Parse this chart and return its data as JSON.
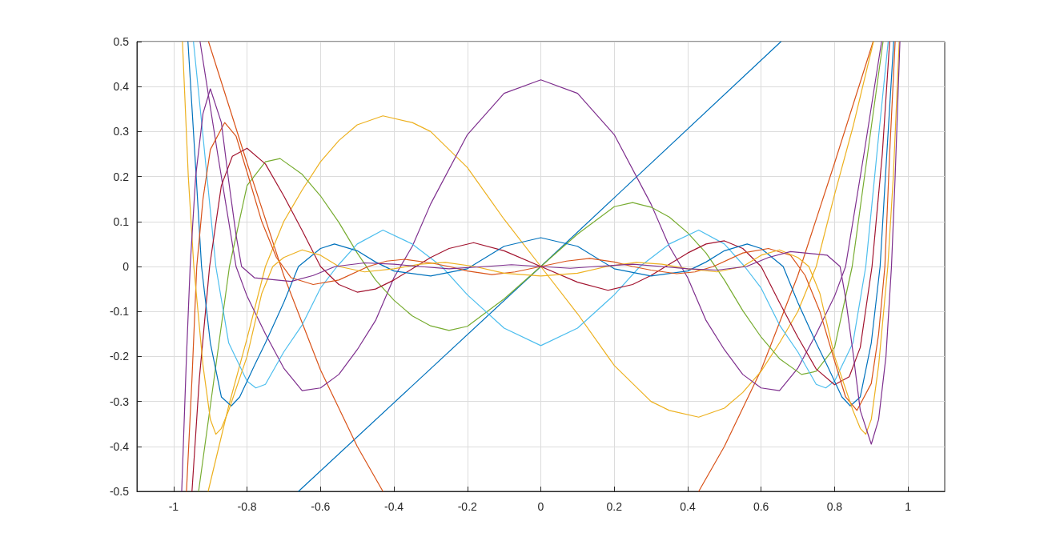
{
  "chart_data": {
    "type": "line",
    "xlim": [
      -1.1,
      1.1
    ],
    "xticks": [
      -1,
      -0.8,
      -0.6,
      -0.4,
      -0.2,
      0,
      0.2,
      0.4,
      0.6,
      0.8,
      1
    ],
    "ylim": [
      -0.5,
      0.5
    ],
    "yticks": [
      -0.5,
      -0.4,
      -0.3,
      -0.2,
      -0.1,
      0,
      0.1,
      0.2,
      0.3,
      0.4,
      0.5
    ],
    "grid": true,
    "marker": "none",
    "line_style": "solid",
    "series": [
      {
        "color": "#0072bd",
        "x": [
          -0.66,
          0,
          0.654
        ],
        "values": [
          -0.5,
          0,
          0.5
        ]
      },
      {
        "color": "#d95319",
        "x": [
          -0.905,
          -0.8,
          -0.7,
          -0.6,
          -0.5,
          -0.43,
          0,
          0.43,
          0.5,
          0.6,
          0.7,
          0.8,
          0.905
        ],
        "values": [
          0.5,
          0.23,
          -0.02,
          -0.23,
          -0.4,
          -0.5,
          null,
          -0.5,
          -0.4,
          -0.23,
          -0.02,
          0.23,
          0.5
        ]
      },
      {
        "color": "#edb120",
        "x": [
          -0.906,
          -0.85,
          -0.8,
          -0.75,
          -0.7,
          -0.65,
          -0.6,
          -0.55,
          -0.5,
          -0.43,
          -0.35,
          -0.3,
          -0.2,
          -0.1,
          0,
          0.1,
          0.2,
          0.3,
          0.35,
          0.43,
          0.5,
          0.55,
          0.6,
          0.65,
          0.7,
          0.75,
          0.8,
          0.85,
          0.906
        ],
        "values": [
          -0.5,
          -0.31,
          -0.16,
          0,
          0.1,
          0.17,
          0.233,
          0.28,
          0.315,
          0.335,
          0.32,
          0.3,
          0.22,
          0.105,
          0,
          -0.105,
          -0.22,
          -0.3,
          -0.32,
          -0.335,
          -0.315,
          -0.28,
          -0.233,
          -0.17,
          -0.1,
          0,
          0.16,
          0.31,
          0.5
        ]
      },
      {
        "color": "#7e2f8e",
        "x": [
          -0.928,
          -0.88,
          -0.83,
          -0.8,
          -0.75,
          -0.7,
          -0.65,
          -0.6,
          -0.55,
          -0.5,
          -0.45,
          -0.4,
          -0.35,
          -0.3,
          -0.2,
          -0.1,
          0,
          0.1,
          0.2,
          0.3,
          0.35,
          0.4,
          0.45,
          0.5,
          0.55,
          0.6,
          0.65,
          0.7,
          0.75,
          0.8,
          0.83,
          0.88,
          0.928
        ],
        "values": [
          0.5,
          0.25,
          0,
          -0.066,
          -0.15,
          -0.226,
          -0.276,
          -0.27,
          -0.24,
          -0.185,
          -0.12,
          -0.025,
          0.045,
          0.139,
          0.293,
          0.385,
          0.415,
          0.385,
          0.293,
          0.139,
          0.045,
          -0.025,
          -0.12,
          -0.185,
          -0.24,
          -0.27,
          -0.276,
          -0.226,
          -0.15,
          -0.066,
          0,
          0.25,
          0.5
        ]
      },
      {
        "color": "#77ac30",
        "x": [
          -0.932,
          -0.9,
          -0.848,
          -0.8,
          -0.75,
          -0.71,
          -0.65,
          -0.6,
          -0.55,
          -0.5,
          -0.45,
          -0.4,
          -0.35,
          -0.3,
          -0.25,
          -0.2,
          -0.1,
          0,
          0.1,
          0.2,
          0.25,
          0.3,
          0.35,
          0.4,
          0.45,
          0.5,
          0.55,
          0.6,
          0.65,
          0.71,
          0.75,
          0.8,
          0.848,
          0.9,
          0.932
        ],
        "values": [
          -0.5,
          -0.31,
          0,
          0.18,
          0.233,
          0.24,
          0.205,
          0.157,
          0.098,
          0.03,
          -0.03,
          -0.075,
          -0.11,
          -0.132,
          -0.142,
          -0.133,
          -0.072,
          0,
          0.072,
          0.133,
          0.142,
          0.132,
          0.11,
          0.075,
          0.03,
          -0.03,
          -0.098,
          -0.157,
          -0.205,
          -0.24,
          -0.233,
          -0.18,
          0,
          0.31,
          0.5
        ]
      },
      {
        "color": "#4dbeee",
        "x": [
          -0.946,
          -0.92,
          -0.885,
          -0.85,
          -0.8,
          -0.776,
          -0.75,
          -0.7,
          -0.65,
          -0.6,
          -0.555,
          -0.5,
          -0.43,
          -0.35,
          -0.27,
          -0.2,
          -0.1,
          0,
          0.1,
          0.2,
          0.27,
          0.35,
          0.43,
          0.5,
          0.555,
          0.6,
          0.65,
          0.7,
          0.75,
          0.776,
          0.8,
          0.85,
          0.885,
          0.92,
          0.946
        ],
        "values": [
          0.5,
          0.29,
          0,
          -0.17,
          -0.255,
          -0.27,
          -0.262,
          -0.19,
          -0.13,
          -0.048,
          0,
          0.05,
          0.081,
          0.05,
          0,
          -0.063,
          -0.137,
          -0.176,
          -0.137,
          -0.063,
          0,
          0.05,
          0.081,
          0.05,
          0,
          -0.048,
          -0.13,
          -0.19,
          -0.262,
          -0.27,
          -0.255,
          -0.17,
          0,
          0.29,
          0.5
        ]
      },
      {
        "color": "#a2142f",
        "x": [
          -0.95,
          -0.93,
          -0.902,
          -0.87,
          -0.84,
          -0.8,
          -0.75,
          -0.7,
          -0.65,
          -0.6,
          -0.55,
          -0.5,
          -0.45,
          -0.4,
          -0.34,
          -0.3,
          -0.25,
          -0.183,
          -0.1,
          0,
          0.1,
          0.183,
          0.25,
          0.3,
          0.34,
          0.4,
          0.45,
          0.5,
          0.55,
          0.6,
          0.65,
          0.7,
          0.75,
          0.8,
          0.84,
          0.87,
          0.902,
          0.93,
          0.95
        ],
        "values": [
          -0.5,
          -0.25,
          0,
          0.18,
          0.245,
          0.263,
          0.228,
          0.157,
          0.08,
          0,
          -0.04,
          -0.057,
          -0.05,
          -0.03,
          0,
          0.02,
          0.04,
          0.053,
          0.035,
          0,
          -0.035,
          -0.053,
          -0.04,
          -0.02,
          0,
          0.03,
          0.05,
          0.057,
          0.04,
          0,
          -0.08,
          -0.157,
          -0.228,
          -0.263,
          -0.245,
          -0.18,
          0,
          0.25,
          0.5
        ]
      },
      {
        "color": "#0072bd",
        "x": [
          -0.961,
          -0.94,
          -0.924,
          -0.9,
          -0.87,
          -0.843,
          -0.82,
          -0.78,
          -0.75,
          -0.7,
          -0.66,
          -0.6,
          -0.562,
          -0.5,
          -0.45,
          -0.4,
          -0.3,
          -0.2,
          -0.1,
          0,
          0.1,
          0.2,
          0.3,
          0.4,
          0.45,
          0.5,
          0.562,
          0.6,
          0.66,
          0.7,
          0.75,
          0.78,
          0.82,
          0.843,
          0.87,
          0.9,
          0.924,
          0.94,
          0.961
        ],
        "values": [
          0.5,
          0.22,
          0,
          -0.17,
          -0.29,
          -0.31,
          -0.29,
          -0.22,
          -0.17,
          -0.08,
          0,
          0.04,
          0.05,
          0.035,
          0.01,
          -0.01,
          -0.021,
          -0.005,
          0.045,
          0.064,
          0.045,
          -0.005,
          -0.021,
          -0.01,
          0.01,
          0.035,
          0.05,
          0.04,
          0,
          -0.08,
          -0.17,
          -0.22,
          -0.29,
          -0.31,
          -0.29,
          -0.17,
          0,
          0.22,
          0.5
        ]
      },
      {
        "color": "#d95319",
        "x": [
          -0.965,
          -0.95,
          -0.937,
          -0.92,
          -0.9,
          -0.861,
          -0.83,
          -0.8,
          -0.76,
          -0.72,
          -0.68,
          -0.62,
          -0.55,
          -0.47,
          -0.42,
          -0.37,
          -0.3,
          -0.25,
          -0.2,
          -0.133,
          -0.07,
          0,
          0.07,
          0.133,
          0.2,
          0.25,
          0.3,
          0.37,
          0.42,
          0.47,
          0.55,
          0.62,
          0.68,
          0.72,
          0.76,
          0.8,
          0.83,
          0.861,
          0.9,
          0.92,
          0.937,
          0.95,
          0.965
        ],
        "values": [
          -0.5,
          -0.25,
          0,
          0.15,
          0.26,
          0.32,
          0.29,
          0.21,
          0.1,
          0.02,
          -0.025,
          -0.04,
          -0.03,
          0,
          0.012,
          0.016,
          0.008,
          0,
          -0.01,
          -0.018,
          -0.012,
          0,
          0.012,
          0.018,
          0.01,
          0,
          -0.008,
          -0.016,
          -0.012,
          0,
          0.03,
          0.04,
          0.025,
          -0.02,
          -0.1,
          -0.21,
          -0.29,
          -0.32,
          -0.26,
          -0.15,
          0,
          0.25,
          0.5
        ]
      },
      {
        "color": "#edb120",
        "x": [
          -0.976,
          -0.96,
          -0.945,
          -0.92,
          -0.9,
          -0.885,
          -0.87,
          -0.85,
          -0.8,
          -0.76,
          -0.73,
          -0.7,
          -0.65,
          -0.6,
          -0.55,
          -0.48,
          -0.4,
          -0.33,
          -0.26,
          -0.18,
          -0.1,
          0,
          0.1,
          0.18,
          0.26,
          0.33,
          0.4,
          0.48,
          0.55,
          0.6,
          0.65,
          0.7,
          0.73,
          0.76,
          0.8,
          0.85,
          0.87,
          0.885,
          0.9,
          0.92,
          0.945,
          0.96,
          0.976
        ],
        "values": [
          0.5,
          0.2,
          0,
          -0.22,
          -0.34,
          -0.373,
          -0.36,
          -0.32,
          -0.2,
          -0.06,
          0,
          0.02,
          0.037,
          0.025,
          0,
          -0.012,
          -0.005,
          0.005,
          0.009,
          0,
          -0.015,
          -0.021,
          -0.015,
          0,
          0.009,
          0.005,
          -0.005,
          -0.012,
          0,
          0.025,
          0.037,
          0.02,
          0,
          -0.06,
          -0.2,
          -0.32,
          -0.36,
          -0.373,
          -0.34,
          -0.22,
          0,
          0.2,
          0.5
        ]
      },
      {
        "color": "#7e2f8e",
        "x": [
          -0.978,
          -0.965,
          -0.955,
          -0.94,
          -0.92,
          -0.9,
          -0.87,
          -0.85,
          -0.83,
          -0.815,
          -0.78,
          -0.72,
          -0.68,
          -0.62,
          -0.56,
          -0.48,
          -0.4,
          -0.33,
          -0.25,
          -0.15,
          -0.08,
          0,
          0.08,
          0.15,
          0.25,
          0.33,
          0.4,
          0.48,
          0.56,
          0.62,
          0.68,
          0.72,
          0.78,
          0.815,
          0.83,
          0.85,
          0.87,
          0.9,
          0.92,
          0.94,
          0.955,
          0.965,
          0.978
        ],
        "values": [
          -0.5,
          -0.2,
          0,
          0.2,
          0.34,
          0.395,
          0.32,
          0.19,
          0.07,
          0,
          -0.025,
          -0.03,
          -0.033,
          -0.02,
          0,
          0.008,
          0.005,
          0,
          -0.005,
          0,
          0.004,
          0,
          -0.004,
          0,
          0.005,
          0,
          -0.005,
          -0.008,
          0,
          0.02,
          0.033,
          0.03,
          0.025,
          0,
          -0.07,
          -0.19,
          -0.32,
          -0.395,
          -0.34,
          -0.2,
          0,
          0.2,
          0.5
        ]
      }
    ]
  }
}
